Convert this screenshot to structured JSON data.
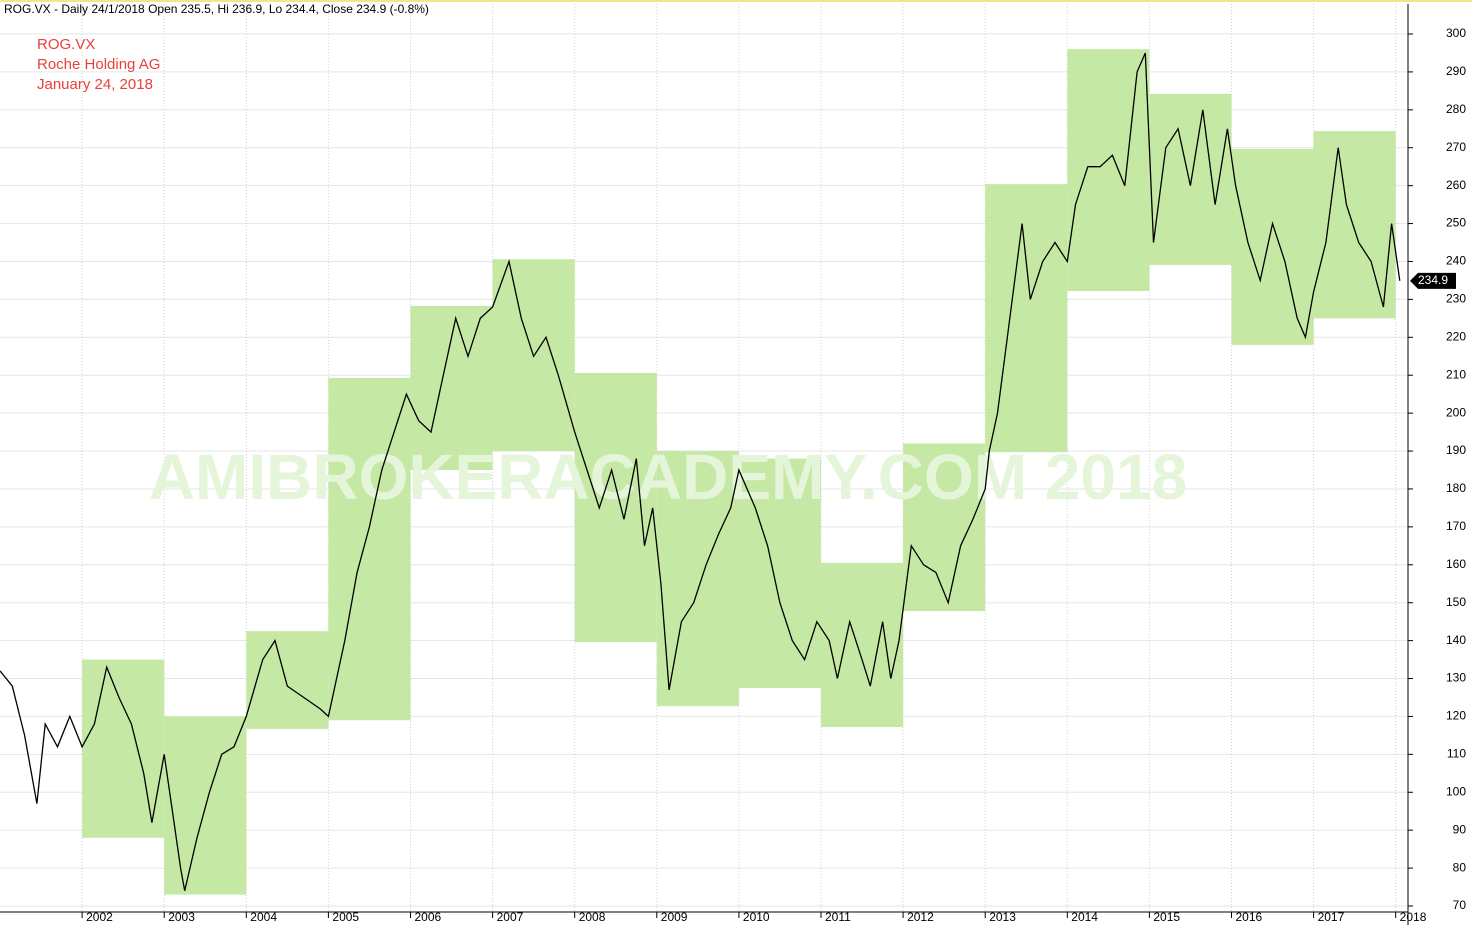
{
  "chart_data": {
    "type": "line",
    "header": "ROG.VX - Daily 24/1/2018 Open 235.5, Hi 236.9, Lo 234.4, Close 234.9 (-0.8%)",
    "annotations": [
      "ROG.VX",
      "Roche Holding AG",
      "January 24, 2018"
    ],
    "watermark": "AMIBROKERACADEMY.COM  2018",
    "xlim": [
      2001.0,
      2018.15
    ],
    "xticks": [
      2002,
      2003,
      2004,
      2005,
      2006,
      2007,
      2008,
      2009,
      2010,
      2011,
      2012,
      2013,
      2014,
      2015,
      2016,
      2017,
      2018
    ],
    "ylim": [
      70,
      300
    ],
    "yticks": [
      70,
      80,
      90,
      100,
      110,
      120,
      130,
      140,
      150,
      160,
      170,
      180,
      190,
      200,
      210,
      220,
      230,
      240,
      250,
      260,
      270,
      280,
      290,
      300
    ],
    "grid": true,
    "range_color": "#c5e9a5",
    "yearly_ranges": [
      {
        "start": 2002,
        "end": 2003,
        "high": 135,
        "low": 88
      },
      {
        "start": 2003,
        "end": 2004,
        "high": 120,
        "low": 73
      },
      {
        "start": 2004,
        "end": 2005,
        "high": 142.5,
        "low": 116.7
      },
      {
        "start": 2005,
        "end": 2006,
        "high": 209.3,
        "low": 119
      },
      {
        "start": 2006,
        "end": 2007,
        "high": 228.3,
        "low": 185
      },
      {
        "start": 2007,
        "end": 2008,
        "high": 240.6,
        "low": 190
      },
      {
        "start": 2008,
        "end": 2009,
        "high": 210.6,
        "low": 139.6
      },
      {
        "start": 2009,
        "end": 2010,
        "high": 190,
        "low": 122.7
      },
      {
        "start": 2010,
        "end": 2011,
        "high": 188,
        "low": 127.5
      },
      {
        "start": 2011,
        "end": 2012,
        "high": 160.5,
        "low": 117.2
      },
      {
        "start": 2012,
        "end": 2013,
        "high": 192,
        "low": 147.8
      },
      {
        "start": 2013,
        "end": 2014,
        "high": 260.4,
        "low": 189.7
      },
      {
        "start": 2014,
        "end": 2015,
        "high": 296,
        "low": 232.2
      },
      {
        "start": 2015,
        "end": 2016,
        "high": 284.2,
        "low": 239.1
      },
      {
        "start": 2016,
        "end": 2017,
        "high": 269.7,
        "low": 218
      },
      {
        "start": 2017,
        "end": 2018,
        "high": 274.4,
        "low": 225
      }
    ],
    "series": [
      {
        "name": "ROG.VX",
        "color": "#000000",
        "x": [
          2001.0,
          2001.15,
          2001.3,
          2001.45,
          2001.55,
          2001.7,
          2001.85,
          2002.0,
          2002.15,
          2002.3,
          2002.45,
          2002.6,
          2002.75,
          2002.85,
          2003.0,
          2003.1,
          2003.2,
          2003.25,
          2003.4,
          2003.55,
          2003.7,
          2003.85,
          2004.0,
          2004.2,
          2004.35,
          2004.5,
          2004.7,
          2004.9,
          2005.0,
          2005.2,
          2005.35,
          2005.5,
          2005.65,
          2005.8,
          2005.95,
          2006.1,
          2006.25,
          2006.4,
          2006.55,
          2006.7,
          2006.85,
          2007.0,
          2007.2,
          2007.35,
          2007.5,
          2007.65,
          2007.8,
          2008.0,
          2008.15,
          2008.3,
          2008.45,
          2008.6,
          2008.75,
          2008.85,
          2008.95,
          2009.05,
          2009.15,
          2009.3,
          2009.45,
          2009.6,
          2009.75,
          2009.9,
          2010.0,
          2010.1,
          2010.2,
          2010.35,
          2010.5,
          2010.65,
          2010.8,
          2010.95,
          2011.1,
          2011.2,
          2011.35,
          2011.5,
          2011.6,
          2011.75,
          2011.85,
          2011.95,
          2012.1,
          2012.25,
          2012.4,
          2012.55,
          2012.7,
          2012.85,
          2013.0,
          2013.05,
          2013.15,
          2013.3,
          2013.45,
          2013.55,
          2013.7,
          2013.85,
          2014.0,
          2014.1,
          2014.25,
          2014.4,
          2014.55,
          2014.7,
          2014.85,
          2014.95,
          2015.05,
          2015.2,
          2015.35,
          2015.5,
          2015.65,
          2015.8,
          2015.95,
          2016.05,
          2016.2,
          2016.35,
          2016.5,
          2016.65,
          2016.8,
          2016.9,
          2017.0,
          2017.15,
          2017.3,
          2017.4,
          2017.55,
          2017.7,
          2017.85,
          2017.95,
          2018.05
        ],
        "values": [
          132,
          128,
          115,
          97,
          118,
          112,
          120,
          112,
          118,
          133,
          125,
          118,
          105,
          92,
          110,
          95,
          80,
          74,
          88,
          100,
          110,
          112,
          120,
          135,
          140,
          128,
          125,
          122,
          120,
          140,
          158,
          170,
          185,
          195,
          205,
          198,
          195,
          210,
          225,
          215,
          225,
          228,
          240,
          225,
          215,
          220,
          210,
          195,
          185,
          175,
          185,
          172,
          188,
          165,
          175,
          155,
          127,
          145,
          150,
          160,
          168,
          175,
          185,
          180,
          175,
          165,
          150,
          140,
          135,
          145,
          140,
          130,
          145,
          135,
          128,
          145,
          130,
          140,
          165,
          160,
          158,
          150,
          165,
          172,
          180,
          190,
          200,
          225,
          250,
          230,
          240,
          245,
          240,
          255,
          265,
          265,
          268,
          260,
          290,
          295,
          245,
          270,
          275,
          260,
          280,
          255,
          275,
          260,
          245,
          235,
          250,
          240,
          225,
          220,
          232,
          245,
          270,
          255,
          245,
          240,
          228,
          250,
          234.9
        ]
      }
    ]
  }
}
